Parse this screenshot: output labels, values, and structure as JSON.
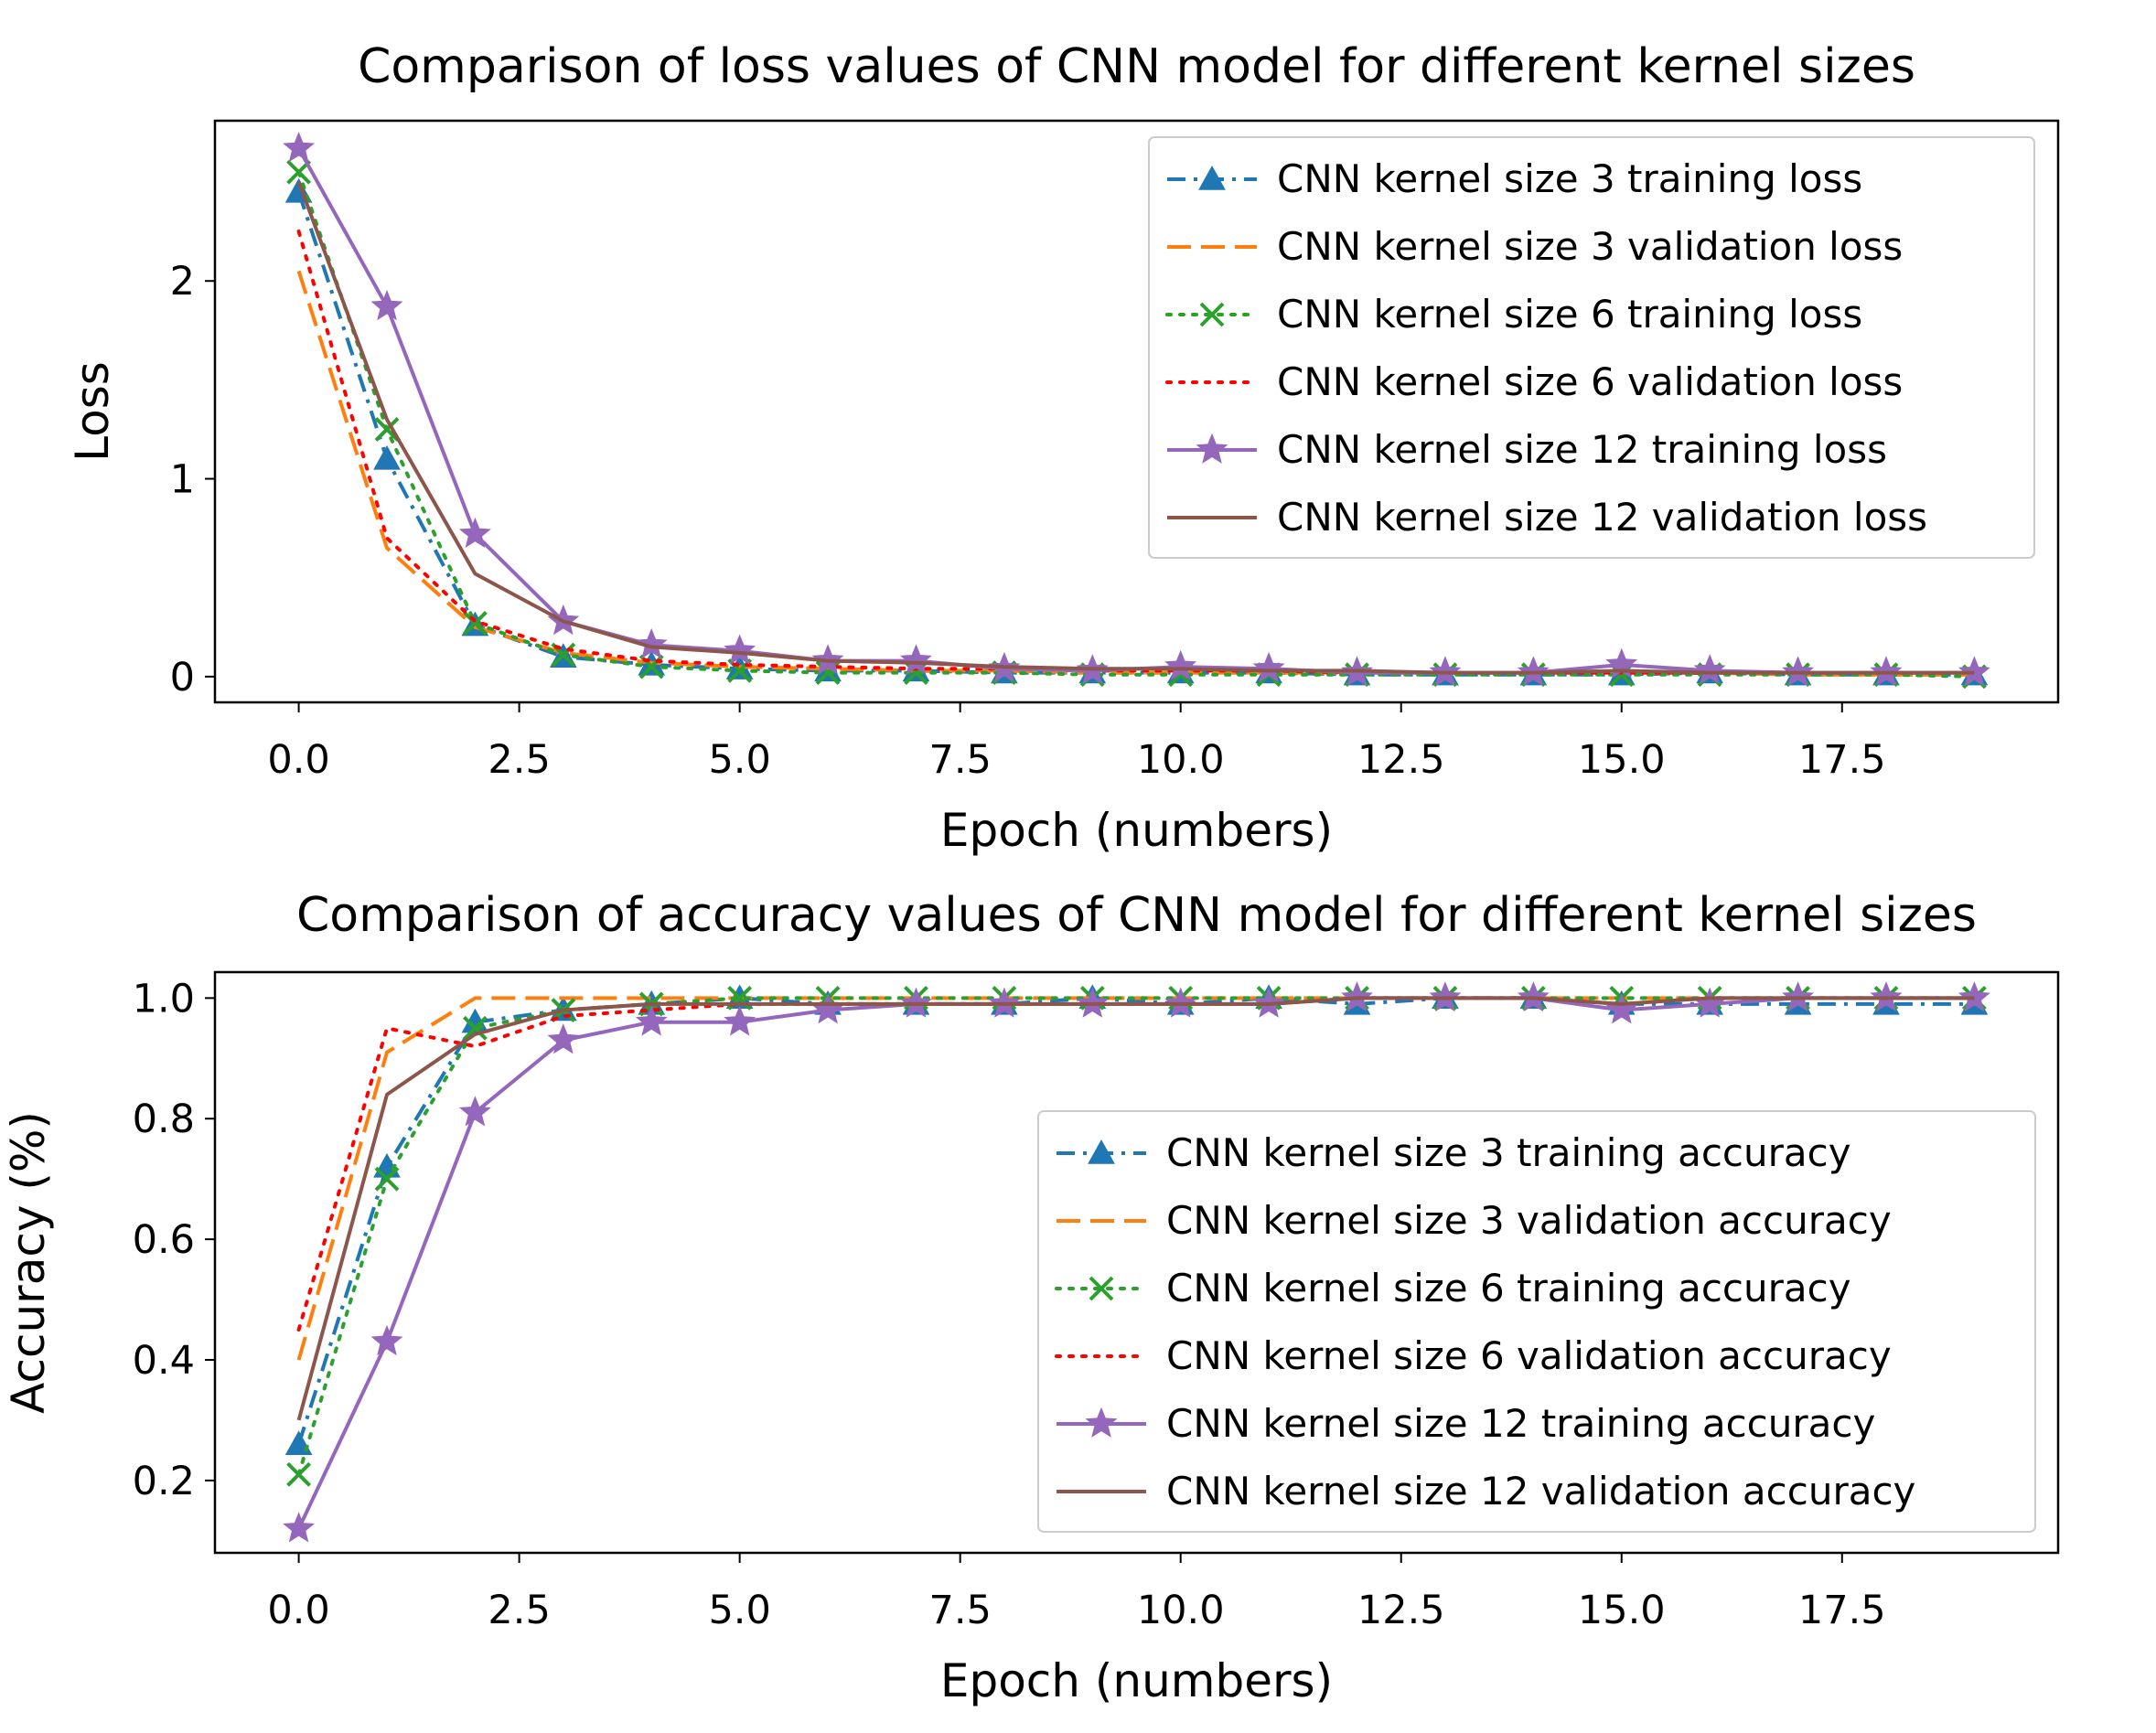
{
  "chart_data": [
    {
      "type": "line",
      "title": "Comparison of loss values of CNN model for different kernel sizes",
      "xlabel": "Epoch (numbers)",
      "ylabel": "Loss",
      "xlim": [
        -0.95,
        19.95
      ],
      "ylim": [
        -0.13,
        2.81
      ],
      "xticks": [
        0,
        2.5,
        5,
        7.5,
        10,
        12.5,
        15,
        17.5
      ],
      "xtick_labels": [
        "0.0",
        "2.5",
        "5.0",
        "7.5",
        "10.0",
        "12.5",
        "15.0",
        "17.5"
      ],
      "yticks": [
        0,
        1,
        2
      ],
      "ytick_labels": [
        "0",
        "1",
        "2"
      ],
      "grid": false,
      "legend_position": "upper right",
      "x": [
        0,
        1,
        2,
        3,
        4,
        5,
        6,
        7,
        8,
        9,
        10,
        11,
        12,
        13,
        14,
        15,
        16,
        17,
        18,
        19
      ],
      "series": [
        {
          "name": "CNN kernel size 3 training loss",
          "color": "#1f77b4",
          "dash": "dashdot",
          "marker": "triangle",
          "values": [
            2.45,
            1.1,
            0.26,
            0.1,
            0.06,
            0.04,
            0.03,
            0.03,
            0.02,
            0.02,
            0.02,
            0.02,
            0.01,
            0.01,
            0.01,
            0.01,
            0.02,
            0.01,
            0.01,
            0.01
          ]
        },
        {
          "name": "CNN kernel size 3 validation loss",
          "color": "#ff7f0e",
          "dash": "dashed",
          "marker": "none",
          "values": [
            2.05,
            0.65,
            0.25,
            0.12,
            0.07,
            0.05,
            0.04,
            0.03,
            0.03,
            0.02,
            0.02,
            0.02,
            0.02,
            0.02,
            0.02,
            0.02,
            0.02,
            0.01,
            0.01,
            0.01
          ]
        },
        {
          "name": "CNN kernel size 6 training loss",
          "color": "#2ca02c",
          "dash": "dotted",
          "marker": "x",
          "values": [
            2.55,
            1.25,
            0.27,
            0.11,
            0.05,
            0.03,
            0.02,
            0.02,
            0.02,
            0.01,
            0.01,
            0.01,
            0.01,
            0.01,
            0.01,
            0.01,
            0.01,
            0.01,
            0.01,
            0.0
          ]
        },
        {
          "name": "CNN kernel size 6 validation loss",
          "color": "#ff0000",
          "dash": "dotted",
          "marker": "none",
          "values": [
            2.25,
            0.7,
            0.28,
            0.14,
            0.08,
            0.06,
            0.05,
            0.04,
            0.04,
            0.03,
            0.03,
            0.03,
            0.02,
            0.02,
            0.02,
            0.02,
            0.02,
            0.02,
            0.02,
            0.02
          ]
        },
        {
          "name": "CNN kernel size 12 training loss",
          "color": "#9467bd",
          "dash": "solid",
          "marker": "star",
          "values": [
            2.67,
            1.87,
            0.72,
            0.28,
            0.16,
            0.13,
            0.08,
            0.08,
            0.04,
            0.03,
            0.05,
            0.04,
            0.02,
            0.02,
            0.02,
            0.06,
            0.03,
            0.02,
            0.02,
            0.02
          ]
        },
        {
          "name": "CNN kernel size 12 validation loss",
          "color": "#8c564b",
          "dash": "solid",
          "marker": "none",
          "values": [
            2.5,
            1.3,
            0.52,
            0.28,
            0.15,
            0.12,
            0.08,
            0.07,
            0.05,
            0.04,
            0.04,
            0.03,
            0.03,
            0.02,
            0.02,
            0.03,
            0.02,
            0.02,
            0.02,
            0.02
          ]
        }
      ]
    },
    {
      "type": "line",
      "title": "Comparison of accuracy values of CNN model for different kernel sizes",
      "xlabel": "Epoch (numbers)",
      "ylabel": "Accuracy (%)",
      "xlim": [
        -0.95,
        19.95
      ],
      "ylim": [
        0.08,
        1.043
      ],
      "xticks": [
        0,
        2.5,
        5,
        7.5,
        10,
        12.5,
        15,
        17.5
      ],
      "xtick_labels": [
        "0.0",
        "2.5",
        "5.0",
        "7.5",
        "10.0",
        "12.5",
        "15.0",
        "17.5"
      ],
      "yticks": [
        0.2,
        0.4,
        0.6,
        0.8,
        1.0
      ],
      "ytick_labels": [
        "0.2",
        "0.4",
        "0.6",
        "0.8",
        "1.0"
      ],
      "grid": false,
      "legend_position": "center right",
      "x": [
        0,
        1,
        2,
        3,
        4,
        5,
        6,
        7,
        8,
        9,
        10,
        11,
        12,
        13,
        14,
        15,
        16,
        17,
        18,
        19
      ],
      "series": [
        {
          "name": "CNN kernel size 3 training accuracy",
          "color": "#1f77b4",
          "dash": "dashdot",
          "marker": "triangle",
          "values": [
            0.26,
            0.72,
            0.96,
            0.98,
            0.99,
            1.0,
            0.99,
            0.99,
            0.99,
            1.0,
            0.99,
            1.0,
            0.99,
            1.0,
            1.0,
            0.99,
            0.99,
            0.99,
            0.99,
            0.99
          ]
        },
        {
          "name": "CNN kernel size 3 validation accuracy",
          "color": "#ff7f0e",
          "dash": "dashed",
          "marker": "none",
          "values": [
            0.4,
            0.91,
            1.0,
            1.0,
            1.0,
            1.0,
            1.0,
            1.0,
            1.0,
            1.0,
            1.0,
            1.0,
            1.0,
            1.0,
            1.0,
            1.0,
            1.0,
            1.0,
            1.0,
            1.0
          ]
        },
        {
          "name": "CNN kernel size 6 training accuracy",
          "color": "#2ca02c",
          "dash": "dotted",
          "marker": "x",
          "values": [
            0.21,
            0.7,
            0.95,
            0.98,
            0.99,
            1.0,
            1.0,
            1.0,
            1.0,
            1.0,
            1.0,
            1.0,
            1.0,
            1.0,
            1.0,
            1.0,
            1.0,
            1.0,
            1.0,
            1.0
          ]
        },
        {
          "name": "CNN kernel size 6 validation accuracy",
          "color": "#ff0000",
          "dash": "dotted",
          "marker": "none",
          "values": [
            0.45,
            0.95,
            0.92,
            0.97,
            0.98,
            0.99,
            0.99,
            0.99,
            0.99,
            0.99,
            0.99,
            0.99,
            1.0,
            1.0,
            1.0,
            0.99,
            1.0,
            1.0,
            1.0,
            1.0
          ]
        },
        {
          "name": "CNN kernel size 12 training accuracy",
          "color": "#9467bd",
          "dash": "solid",
          "marker": "star",
          "values": [
            0.12,
            0.43,
            0.81,
            0.93,
            0.96,
            0.96,
            0.98,
            0.99,
            0.99,
            0.99,
            0.99,
            0.99,
            1.0,
            1.0,
            1.0,
            0.98,
            0.99,
            1.0,
            1.0,
            1.0
          ]
        },
        {
          "name": "CNN kernel size 12 validation accuracy",
          "color": "#8c564b",
          "dash": "solid",
          "marker": "none",
          "values": [
            0.3,
            0.84,
            0.94,
            0.98,
            0.99,
            0.99,
            0.99,
            0.99,
            0.99,
            0.99,
            0.99,
            0.99,
            1.0,
            1.0,
            1.0,
            0.99,
            1.0,
            1.0,
            1.0,
            1.0
          ]
        }
      ]
    }
  ]
}
